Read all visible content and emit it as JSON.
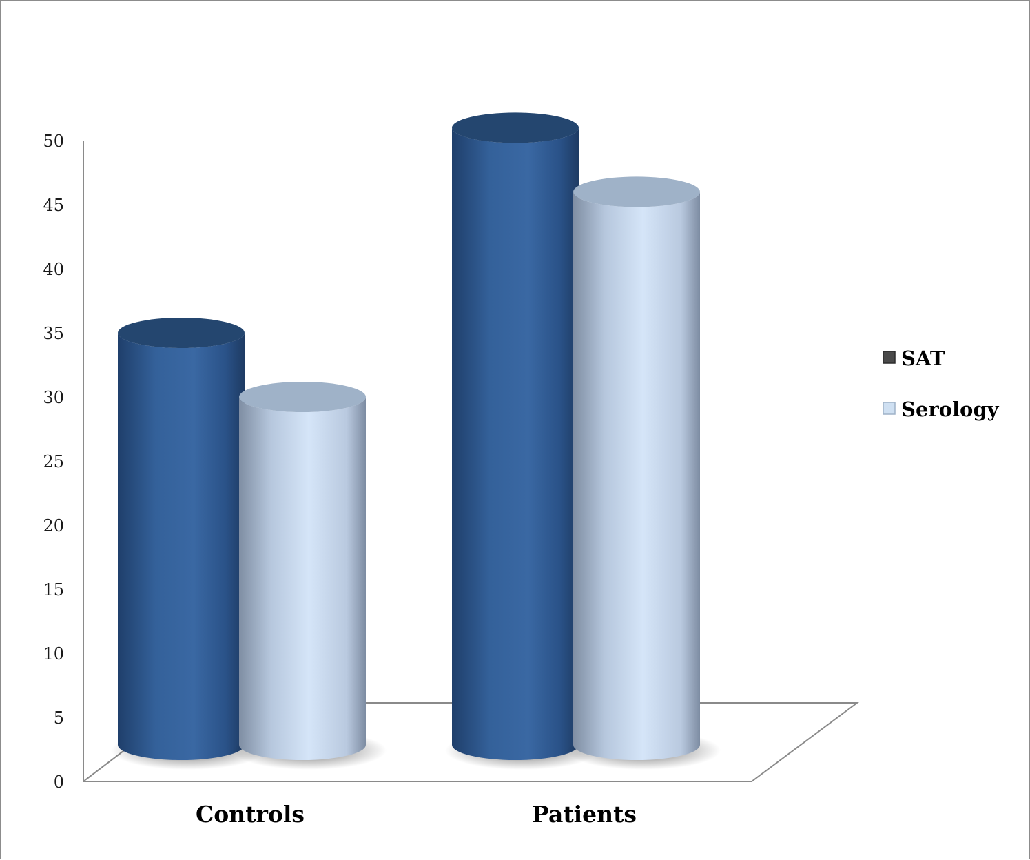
{
  "chart_data": {
    "type": "bar",
    "style": "3d-cylinder",
    "categories": [
      "Controls",
      "Patients"
    ],
    "series": [
      {
        "name": "SAT",
        "values": [
          35,
          51
        ],
        "color": "#2f5a92"
      },
      {
        "name": "Serology",
        "values": [
          30,
          46
        ],
        "color": "#c9d9ee"
      }
    ],
    "ylim": [
      0,
      50
    ],
    "yticks": [
      "0",
      "5",
      "10",
      "15",
      "20",
      "25",
      "30",
      "35",
      "40",
      "45",
      "50"
    ],
    "grid": false,
    "legend_position": "right"
  }
}
